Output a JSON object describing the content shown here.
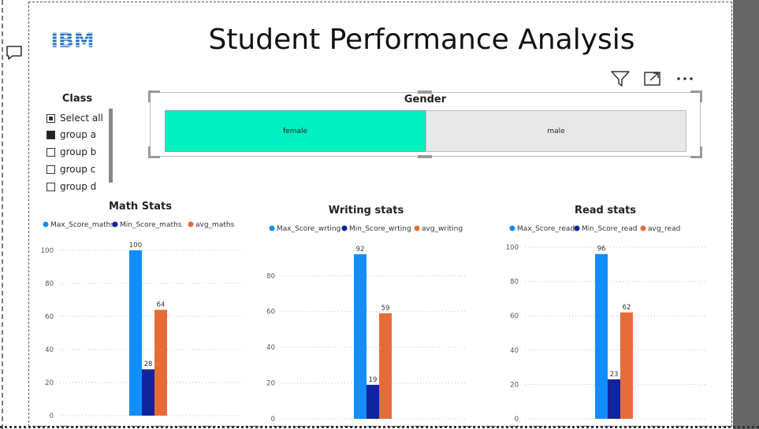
{
  "report": {
    "title": "Student Performance Analysis"
  },
  "logo": {
    "text": "IBM",
    "color": "#1f70c1"
  },
  "visual_header": {
    "icons": [
      "filter-icon",
      "focus-mode-icon",
      "more-options-icon"
    ]
  },
  "class_slicer": {
    "title": "Class",
    "items": [
      {
        "label": "Select all",
        "state": "partial"
      },
      {
        "label": "group a",
        "state": "checked"
      },
      {
        "label": "group b",
        "state": "unchecked"
      },
      {
        "label": "group c",
        "state": "unchecked"
      },
      {
        "label": "group d",
        "state": "unchecked"
      }
    ]
  },
  "gender_slicer": {
    "title": "Gender",
    "options": [
      {
        "label": "female",
        "selected": true,
        "color": "#00f0c0"
      },
      {
        "label": "male",
        "selected": false,
        "color": "#e8e8e8"
      }
    ]
  },
  "chart_data": [
    {
      "type": "bar",
      "title": "Math Stats",
      "series": [
        {
          "name": "Max_Score_maths",
          "values": [
            100
          ],
          "color": "#118dff"
        },
        {
          "name": "Min_Score_maths",
          "values": [
            28
          ],
          "color": "#12239e"
        },
        {
          "name": "avg_maths",
          "values": [
            64
          ],
          "color": "#e66c37"
        }
      ],
      "yticks": [
        0,
        20,
        40,
        60,
        80,
        100
      ],
      "ylim": [
        0,
        100
      ],
      "grid": true,
      "legend": "top"
    },
    {
      "type": "bar",
      "title": "Writing stats",
      "series": [
        {
          "name": "Max_Score_wrting",
          "values": [
            92
          ],
          "color": "#118dff"
        },
        {
          "name": "Min_Score_wrting",
          "values": [
            19
          ],
          "color": "#12239e"
        },
        {
          "name": "avg_writing",
          "values": [
            59
          ],
          "color": "#e66c37"
        }
      ],
      "yticks": [
        0,
        20,
        40,
        60,
        80
      ],
      "ylim": [
        0,
        92
      ],
      "grid": true,
      "legend": "top"
    },
    {
      "type": "bar",
      "title": "Read stats",
      "series": [
        {
          "name": "Max_Score_read",
          "values": [
            96
          ],
          "color": "#118dff"
        },
        {
          "name": "Min_Score_read",
          "values": [
            23
          ],
          "color": "#12239e"
        },
        {
          "name": "avg_read",
          "values": [
            62
          ],
          "color": "#e66c37"
        }
      ],
      "yticks": [
        0,
        20,
        40,
        60,
        80,
        100
      ],
      "ylim": [
        0,
        100
      ],
      "grid": true,
      "legend": "top"
    }
  ]
}
